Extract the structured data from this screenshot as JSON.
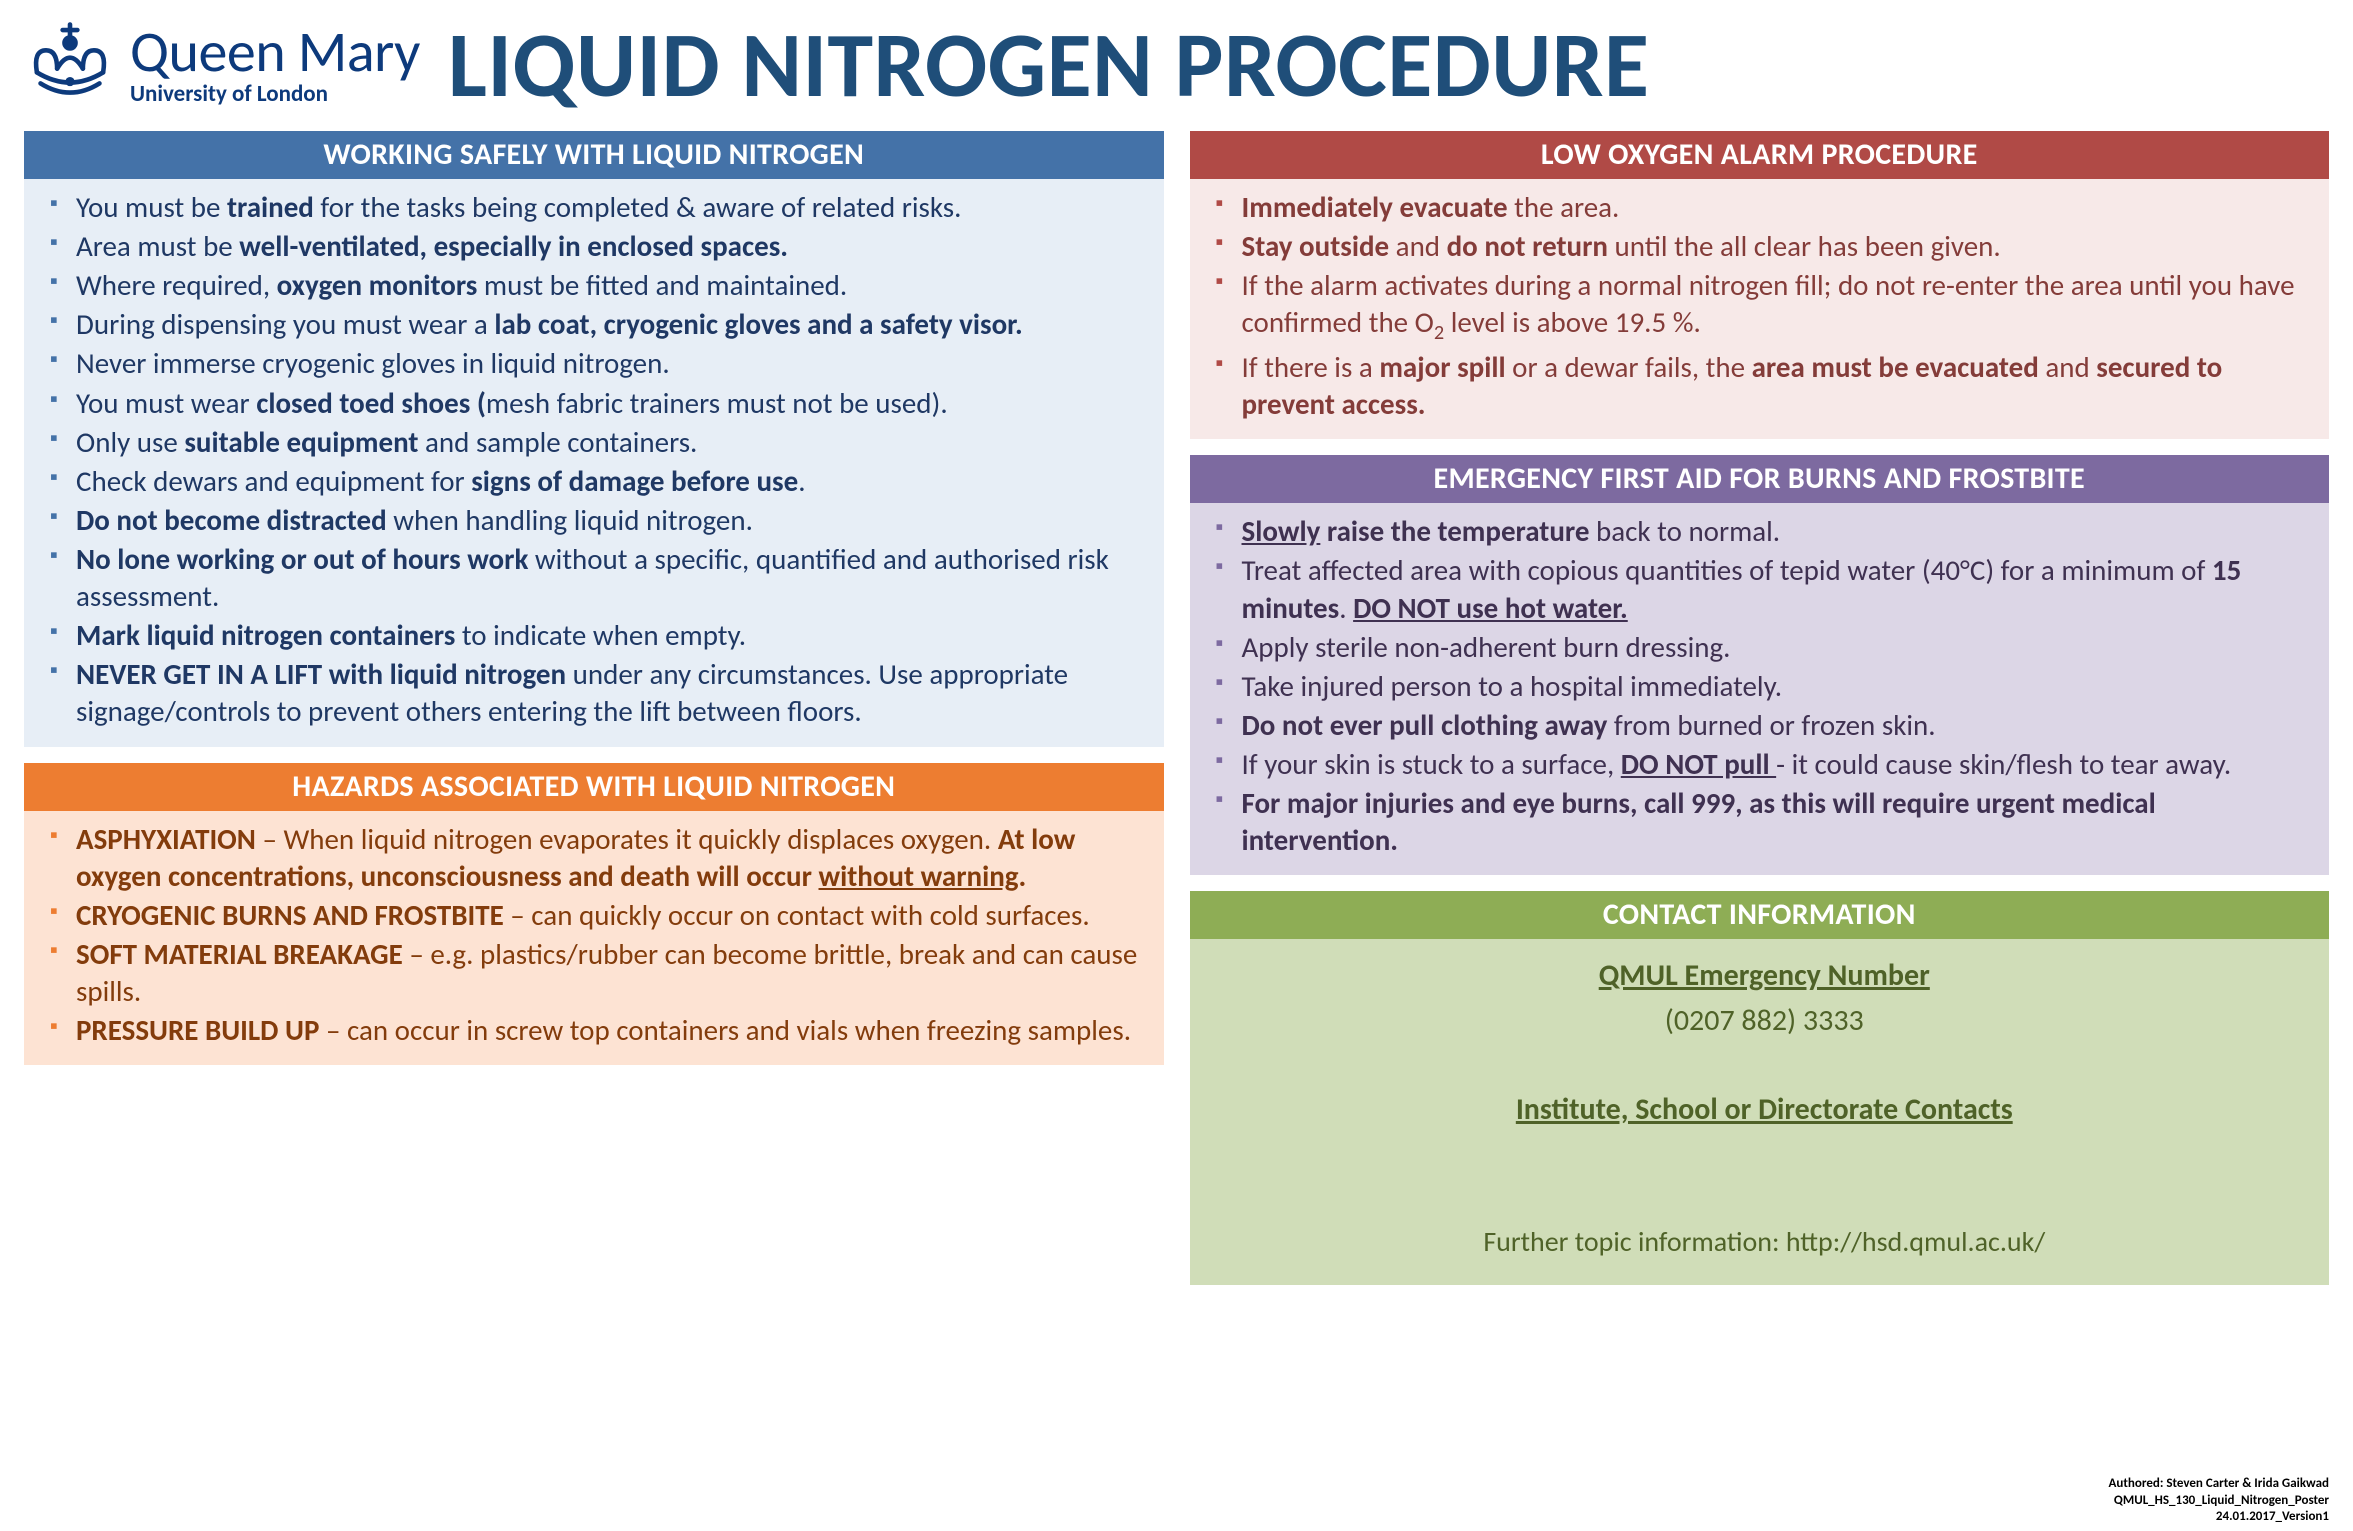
{
  "logo": {
    "main": "Queen Mary",
    "sub": "University of London",
    "color": "#0d3a7c"
  },
  "title": "LIQUID NITROGEN PROCEDURE",
  "title_color": "#1f4e79",
  "panels": {
    "safety": {
      "header": "WORKING SAFELY WITH LIQUID NITROGEN",
      "header_bg": "#4472a8",
      "body_bg": "#e7eef6",
      "text_color": "#1f3864",
      "bullet_color": "#4472a8",
      "items": [
        "You must be <b>trained</b> for the tasks being completed & aware of related risks.",
        "Area must be <b>well-ventilated, especially in enclosed spaces.</b>",
        "Where required, <b>oxygen monitors</b> must be fitted and maintained.",
        "During dispensing you must wear a <b>lab coat, cryogenic gloves and a safety visor.</b>",
        "Never immerse cryogenic gloves in liquid nitrogen.",
        "You must wear <b>closed toed shoes (</b>mesh fabric trainers must not be used).",
        "Only use <b>suitable equipment</b> and sample containers.",
        "Check dewars and equipment for <b>signs of damage before use</b>.",
        "<b>Do not become distracted</b> when handling liquid nitrogen.",
        "<b>No lone working or out of hours work</b> without a specific, quantified and authorised risk assessment.",
        "<b>Mark liquid nitrogen containers</b> to indicate when empty.",
        "<b>NEVER GET IN A LIFT with liquid nitrogen</b> under any circumstances. Use appropriate signage/controls to prevent others entering the lift between floors."
      ]
    },
    "hazards": {
      "header": "HAZARDS ASSOCIATED WITH LIQUID NITROGEN",
      "header_bg": "#ed7d31",
      "body_bg": "#fde3d3",
      "text_color": "#833c0c",
      "bullet_color": "#ed7d31",
      "items": [
        "<b>ASPHYXIATION</b> – When liquid nitrogen evaporates it quickly displaces oxygen. <b>At low oxygen concentrations, unconsciousness and death will occur <u>without warning</u>.</b>",
        "<b>CRYOGENIC BURNS AND FROSTBITE</b> – can quickly occur on contact with cold surfaces.",
        "<b>SOFT MATERIAL BREAKAGE</b> – e.g. plastics/rubber can become brittle, break and can cause spills.",
        "<b>PRESSURE BUILD UP</b> – can occur in screw top containers and vials when freezing samples."
      ]
    },
    "alarm": {
      "header": "LOW OXYGEN ALARM PROCEDURE",
      "header_bg": "#b04a46",
      "body_bg": "#f7e9e8",
      "text_color": "#843c39",
      "bullet_color": "#b04a46",
      "items": [
        "<b>Immediately evacuate</b> the area.",
        "<b>Stay outside</b> and <b>do not return</b> until the all clear has been given.",
        "If the alarm activates during a normal nitrogen fill; do not re-enter the area until you have confirmed  the O<span class='sub'>2</span> level is above 19.5 %.",
        "If there is a <b>major spill</b> or a dewar fails, the <b>area must be evacuated</b> and <b>secured to prevent access.</b>"
      ]
    },
    "firstaid": {
      "header": "EMERGENCY FIRST AID FOR BURNS AND FROSTBITE",
      "header_bg": "#7d6aa0",
      "body_bg": "#dcd6e6",
      "text_color": "#3f3151",
      "bullet_color": "#7d6aa0",
      "items": [
        "<b><u>Slowly</u> raise the temperature</b> back to normal.",
        "Treat affected area with copious quantities of tepid water (40°C) for a minimum of <b>15 minutes</b>. <b><u>DO NOT use hot water.</u></b>",
        "Apply sterile non-adherent burn dressing.",
        "Take injured person to a hospital immediately.",
        "<b>Do not ever pull clothing away</b> from burned or frozen skin.",
        "If your skin is stuck to a surface, <b><u>DO NOT pull </u></b>- it could cause skin/flesh to tear away.",
        "<b>For major injuries and eye burns, call 999, as this will require urgent medical intervention.</b>"
      ]
    },
    "contact": {
      "header": "CONTACT INFORMATION",
      "header_bg": "#8ead55",
      "body_bg": "#d0ddb8",
      "text_color": "#4f6228",
      "emergency_label": "QMUL Emergency Number",
      "emergency_number": "(0207 882) 3333",
      "institute_label": "Institute, School or Directorate Contacts",
      "footer": "Further topic information: http://hsd.qmul.ac.uk/"
    }
  },
  "meta": {
    "line1": "Authored: Steven Carter & Irida Gaikwad",
    "line2": "QMUL_HS_130_Liquid_Nitrogen_Poster",
    "line3": "24.01.2017_Version1"
  }
}
